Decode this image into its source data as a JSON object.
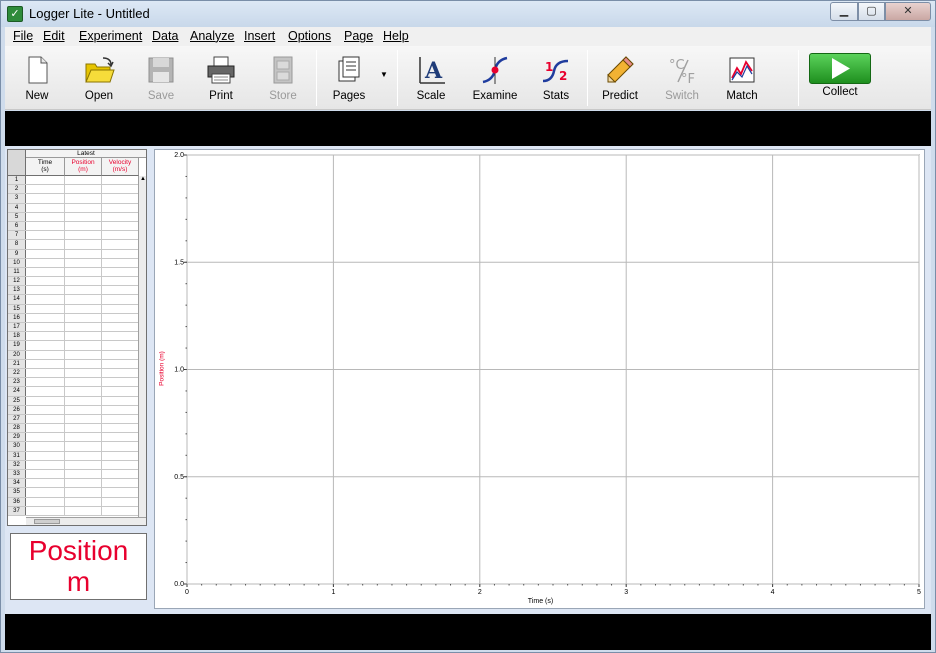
{
  "window": {
    "title": "Logger Lite - Untitled",
    "app_icon": "logger-lite-icon",
    "controls": {
      "minimize": "minimize-icon",
      "maximize": "maximize-icon",
      "close": "close-icon"
    }
  },
  "menu": [
    "File",
    "Edit",
    "Experiment",
    "Data",
    "Analyze",
    "Insert",
    "Options",
    "Page",
    "Help"
  ],
  "toolbar": {
    "new": "New",
    "open": "Open",
    "save": "Save",
    "print": "Print",
    "store": "Store",
    "pages": "Pages",
    "scale": "Scale",
    "examine": "Examine",
    "stats": "Stats",
    "predict": "Predict",
    "switch": "Switch",
    "match": "Match",
    "collect": "Collect"
  },
  "table": {
    "group_header": "Latest",
    "columns": [
      {
        "name": "Time",
        "unit": "(s)",
        "color": "#000000"
      },
      {
        "name": "Position",
        "unit": "(m)",
        "color": "#e8002e"
      },
      {
        "name": "Velocity",
        "unit": "(m/s)",
        "color": "#e8002e"
      }
    ],
    "row_numbers": [
      "1",
      "2",
      "3",
      "4",
      "5",
      "6",
      "7",
      "8",
      "9",
      "10",
      "11",
      "12",
      "13",
      "14",
      "15",
      "16",
      "17",
      "18",
      "19",
      "20",
      "21",
      "22",
      "23",
      "24",
      "25",
      "26",
      "27",
      "28",
      "29",
      "30",
      "31",
      "32",
      "33",
      "34",
      "35",
      "36",
      "37"
    ]
  },
  "meter": {
    "name": "Position",
    "unit": "m"
  },
  "chart_data": {
    "type": "line",
    "xlabel": "Time (s)",
    "ylabel": "Position (m)",
    "xlim": [
      0,
      5
    ],
    "ylim": [
      0.0,
      2.0
    ],
    "x_ticks": [
      "0",
      "1",
      "2",
      "3",
      "4",
      "5"
    ],
    "y_ticks": [
      "0.0",
      "0.5",
      "1.0",
      "1.5",
      "2.0"
    ],
    "grid": true,
    "series": []
  },
  "colors": {
    "accent": "#e8002e",
    "collect_green": "#22a022"
  }
}
